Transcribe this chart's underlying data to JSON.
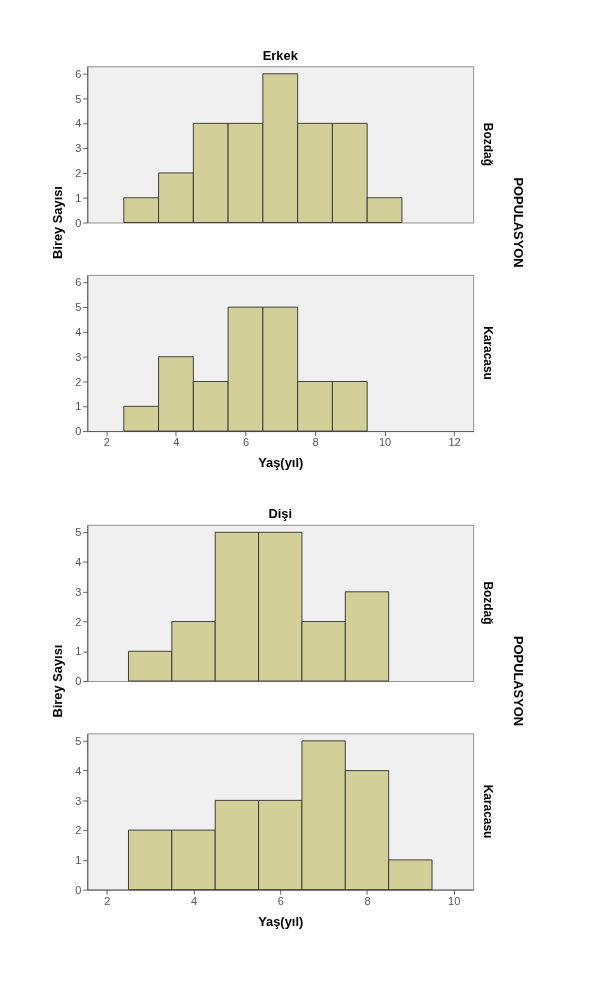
{
  "chart_data": [
    {
      "type": "histogram",
      "title": "Erkek",
      "ylabel": "Birey Sayısı",
      "y2label": "Bozdağ",
      "annotations": [
        "POPULASYON"
      ],
      "color": "#d3cf98",
      "bins": [
        2.5,
        3.5,
        4.5,
        5.5,
        6.5,
        7.5,
        8.5,
        9.5,
        10.5
      ],
      "values": [
        1,
        2,
        4,
        4,
        6,
        4,
        4,
        1
      ],
      "xlim": [
        1.45,
        12.55
      ],
      "xticks": [
        2,
        4,
        6,
        8,
        10,
        12
      ],
      "ylim": [
        0,
        6.3
      ],
      "yticks": [
        0,
        1,
        2,
        3,
        4,
        5,
        6
      ],
      "tick_labels": "y"
    },
    {
      "type": "histogram",
      "xlabel": "Yaş(yıl)",
      "y2label": "Karacasu",
      "color": "#d3cf98",
      "bins": [
        2.5,
        3.5,
        4.5,
        5.5,
        6.5,
        7.5,
        8.5,
        9.5
      ],
      "values": [
        1,
        3,
        2,
        5,
        5,
        2,
        2
      ],
      "xlim": [
        1.45,
        12.55
      ],
      "xticks": [
        2,
        4,
        6,
        8,
        10,
        12
      ],
      "ylim": [
        0,
        6.3
      ],
      "yticks": [
        0,
        1,
        2,
        3,
        4,
        5,
        6
      ]
    },
    {
      "type": "histogram",
      "title": "Dişi",
      "ylabel": "Birey Sayısı",
      "y2label": "Bozdağ",
      "annotations": [
        "POPULASYON"
      ],
      "color": "#d3cf98",
      "bins": [
        2.5,
        3.5,
        4.5,
        5.5,
        6.5,
        7.5,
        8.5
      ],
      "values": [
        1,
        2,
        5,
        5,
        2,
        3
      ],
      "xlim": [
        1.55,
        10.45
      ],
      "xticks": [
        2,
        4,
        6,
        8,
        10
      ],
      "ylim": [
        0,
        5.25
      ],
      "yticks": [
        0,
        1,
        2,
        3,
        4,
        5
      ],
      "tick_labels": "y"
    },
    {
      "type": "histogram",
      "xlabel": "Yaş(yıl)",
      "y2label": "Karacasu",
      "color": "#d3cf98",
      "bins": [
        2.5,
        3.5,
        4.5,
        5.5,
        6.5,
        7.5,
        8.5,
        9.5
      ],
      "values": [
        2,
        2,
        3,
        3,
        5,
        4,
        1
      ],
      "xlim": [
        1.55,
        10.45
      ],
      "xticks": [
        2,
        4,
        6,
        8,
        10
      ],
      "ylim": [
        0,
        5.25
      ],
      "yticks": [
        0,
        1,
        2,
        3,
        4,
        5
      ]
    }
  ]
}
